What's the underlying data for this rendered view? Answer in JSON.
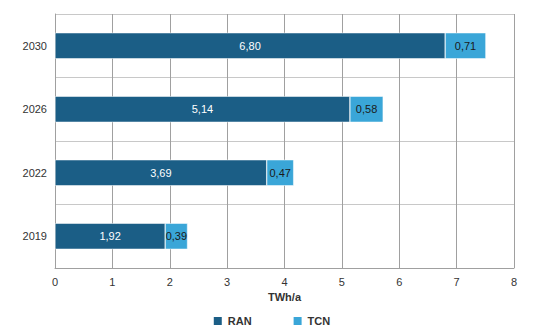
{
  "chart_data": {
    "type": "bar",
    "orientation": "horizontal",
    "stacked": true,
    "categories": [
      "2019",
      "2022",
      "2026",
      "2030"
    ],
    "series": [
      {
        "name": "RAN",
        "color": "#1b5e86",
        "values": [
          1.92,
          3.69,
          5.14,
          6.8
        ],
        "value_labels": [
          "1,92",
          "3,69",
          "5,14",
          "6,80"
        ]
      },
      {
        "name": "TCN",
        "color": "#3aa6d8",
        "values": [
          0.39,
          0.47,
          0.58,
          0.71
        ],
        "value_labels": [
          "0,39",
          "0,47",
          "0,58",
          "0,71"
        ]
      }
    ],
    "xlabel": "TWh/a",
    "xlim": [
      0,
      8
    ],
    "xticks": [
      0,
      1,
      2,
      3,
      4,
      5,
      6,
      7,
      8
    ],
    "grid": true,
    "legend": "bottom",
    "data_labels": true
  }
}
